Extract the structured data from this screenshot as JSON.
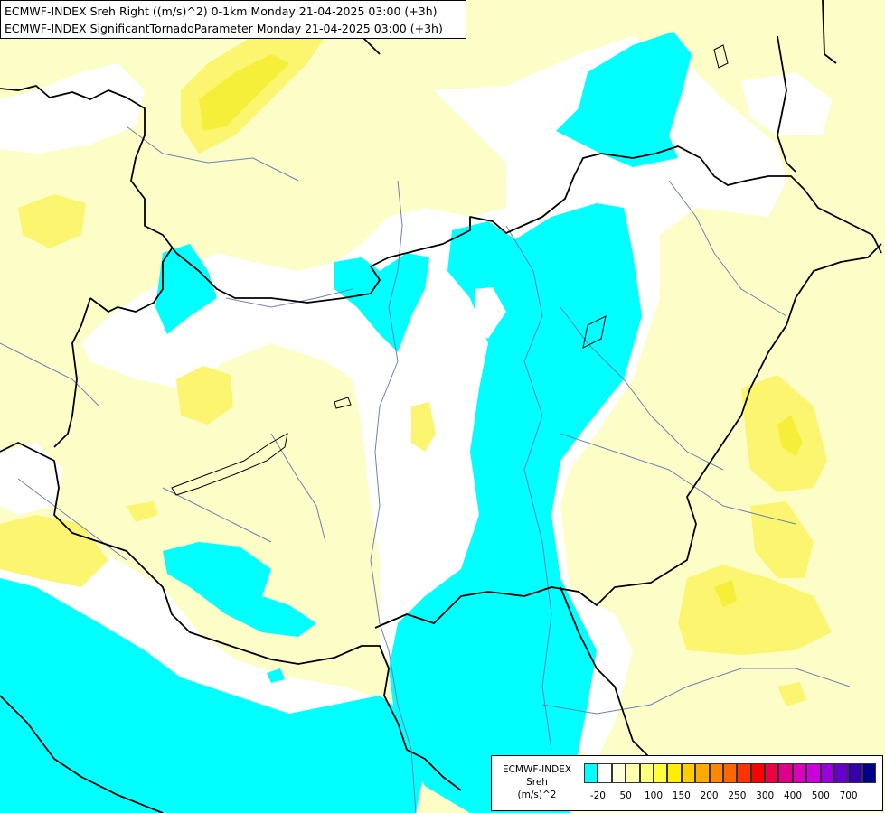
{
  "title": {
    "line1": "ECMWF-INDEX Sreh Right ((m/s)^2) 0-1km Monday 21-04-2025 03:00 (+3h)",
    "line2": "ECMWF-INDEX SignificantTornadoParameter Monday 21-04-2025 03:00 (+3h)"
  },
  "legend": {
    "name_lines": [
      "ECMWF-INDEX",
      "Sreh",
      "(m/s)^2"
    ],
    "colors": [
      "#00ffff",
      "#ffffff",
      "#ffffe0",
      "#ffffb0",
      "#ffff80",
      "#ffff40",
      "#ffee00",
      "#ffcc00",
      "#ffaa00",
      "#ff8800",
      "#ff6600",
      "#ff3300",
      "#ff0000",
      "#ee0044",
      "#dd0088",
      "#dd00bb",
      "#cc00dd",
      "#9900dd",
      "#6600cc",
      "#3300aa",
      "#000088"
    ],
    "ticks": [
      "-20",
      "50",
      "100",
      "150",
      "200",
      "250",
      "300",
      "400",
      "500",
      "700"
    ]
  },
  "colors": {
    "background": "#fdfdc8",
    "cyan": "#00ffff",
    "white": "#ffffff",
    "yellow": "#fbf56f",
    "yellow_strong": "#f5ef3a",
    "border": "#000000",
    "river": "#6b83b0"
  }
}
